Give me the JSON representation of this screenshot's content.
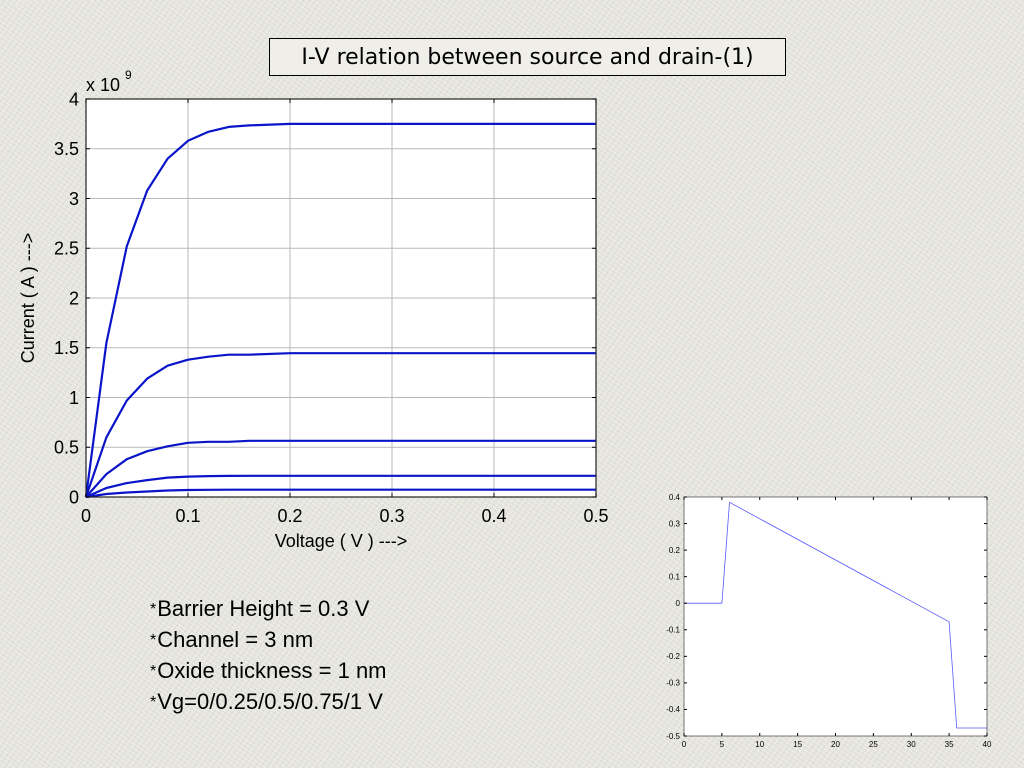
{
  "slide": {
    "title": "I-V relation between source and drain-(1)"
  },
  "parameters": [
    {
      "bullet": "*",
      "text": "Barrier Height = 0.3 V"
    },
    {
      "bullet": "*",
      "text": "Channel = 3 nm"
    },
    {
      "bullet": "*",
      "text": "Oxide thickness = 1 nm"
    },
    {
      "bullet": "*",
      "text": "Vg=0/0.25/0.5/0.75/1 V"
    }
  ],
  "chart_data": [
    {
      "type": "line",
      "title": "",
      "xlabel": "Voltage ( V ) --->",
      "ylabel": "Current ( A ) --->",
      "y_multiplier": "x 10",
      "y_multiplier_exp": "9",
      "xlim": [
        0,
        0.5
      ],
      "ylim": [
        0,
        4
      ],
      "xticks": [
        "0",
        "0.1",
        "0.2",
        "0.3",
        "0.4",
        "0.5"
      ],
      "yticks": [
        "0",
        "0.5",
        "1",
        "1.5",
        "2",
        "2.5",
        "3",
        "3.5",
        "4"
      ],
      "grid": true,
      "line_color": "#0a14c8",
      "series": [
        {
          "x": [
            0,
            0.02,
            0.04,
            0.06,
            0.08,
            0.1,
            0.12,
            0.14,
            0.16,
            0.2,
            0.5
          ],
          "values": [
            0,
            0.03,
            0.045,
            0.055,
            0.065,
            0.07,
            0.072,
            0.073,
            0.073,
            0.073,
            0.073
          ]
        },
        {
          "x": [
            0,
            0.02,
            0.04,
            0.06,
            0.08,
            0.1,
            0.12,
            0.14,
            0.16,
            0.2,
            0.5
          ],
          "values": [
            0,
            0.09,
            0.14,
            0.17,
            0.195,
            0.205,
            0.21,
            0.212,
            0.213,
            0.213,
            0.213
          ]
        },
        {
          "x": [
            0,
            0.02,
            0.04,
            0.06,
            0.08,
            0.1,
            0.12,
            0.14,
            0.16,
            0.2,
            0.5
          ],
          "values": [
            0,
            0.23,
            0.38,
            0.46,
            0.51,
            0.545,
            0.555,
            0.555,
            0.565,
            0.565,
            0.565
          ]
        },
        {
          "x": [
            0,
            0.02,
            0.04,
            0.06,
            0.08,
            0.1,
            0.12,
            0.14,
            0.16,
            0.2,
            0.5
          ],
          "values": [
            0,
            0.6,
            0.97,
            1.19,
            1.32,
            1.38,
            1.41,
            1.43,
            1.43,
            1.445,
            1.445
          ]
        },
        {
          "x": [
            0,
            0.02,
            0.04,
            0.06,
            0.08,
            0.1,
            0.12,
            0.14,
            0.16,
            0.2,
            0.5
          ],
          "values": [
            0,
            1.55,
            2.52,
            3.08,
            3.4,
            3.58,
            3.67,
            3.72,
            3.735,
            3.75,
            3.75
          ]
        }
      ]
    },
    {
      "type": "line",
      "title": "",
      "xlabel": "",
      "ylabel": "",
      "xlim": [
        0,
        40
      ],
      "ylim": [
        -0.5,
        0.4
      ],
      "xticks": [
        "0",
        "5",
        "10",
        "15",
        "20",
        "25",
        "30",
        "35",
        "40"
      ],
      "yticks": [
        "-0.5",
        "-0.4",
        "-0.3",
        "-0.2",
        "-0.1",
        "0",
        "0.1",
        "0.2",
        "0.3",
        "0.4"
      ],
      "grid": false,
      "line_color": "#5a5aff",
      "series": [
        {
          "x": [
            0,
            5,
            6,
            35,
            36,
            40
          ],
          "values": [
            0,
            0,
            0.38,
            -0.07,
            -0.47,
            -0.47
          ]
        }
      ]
    }
  ]
}
